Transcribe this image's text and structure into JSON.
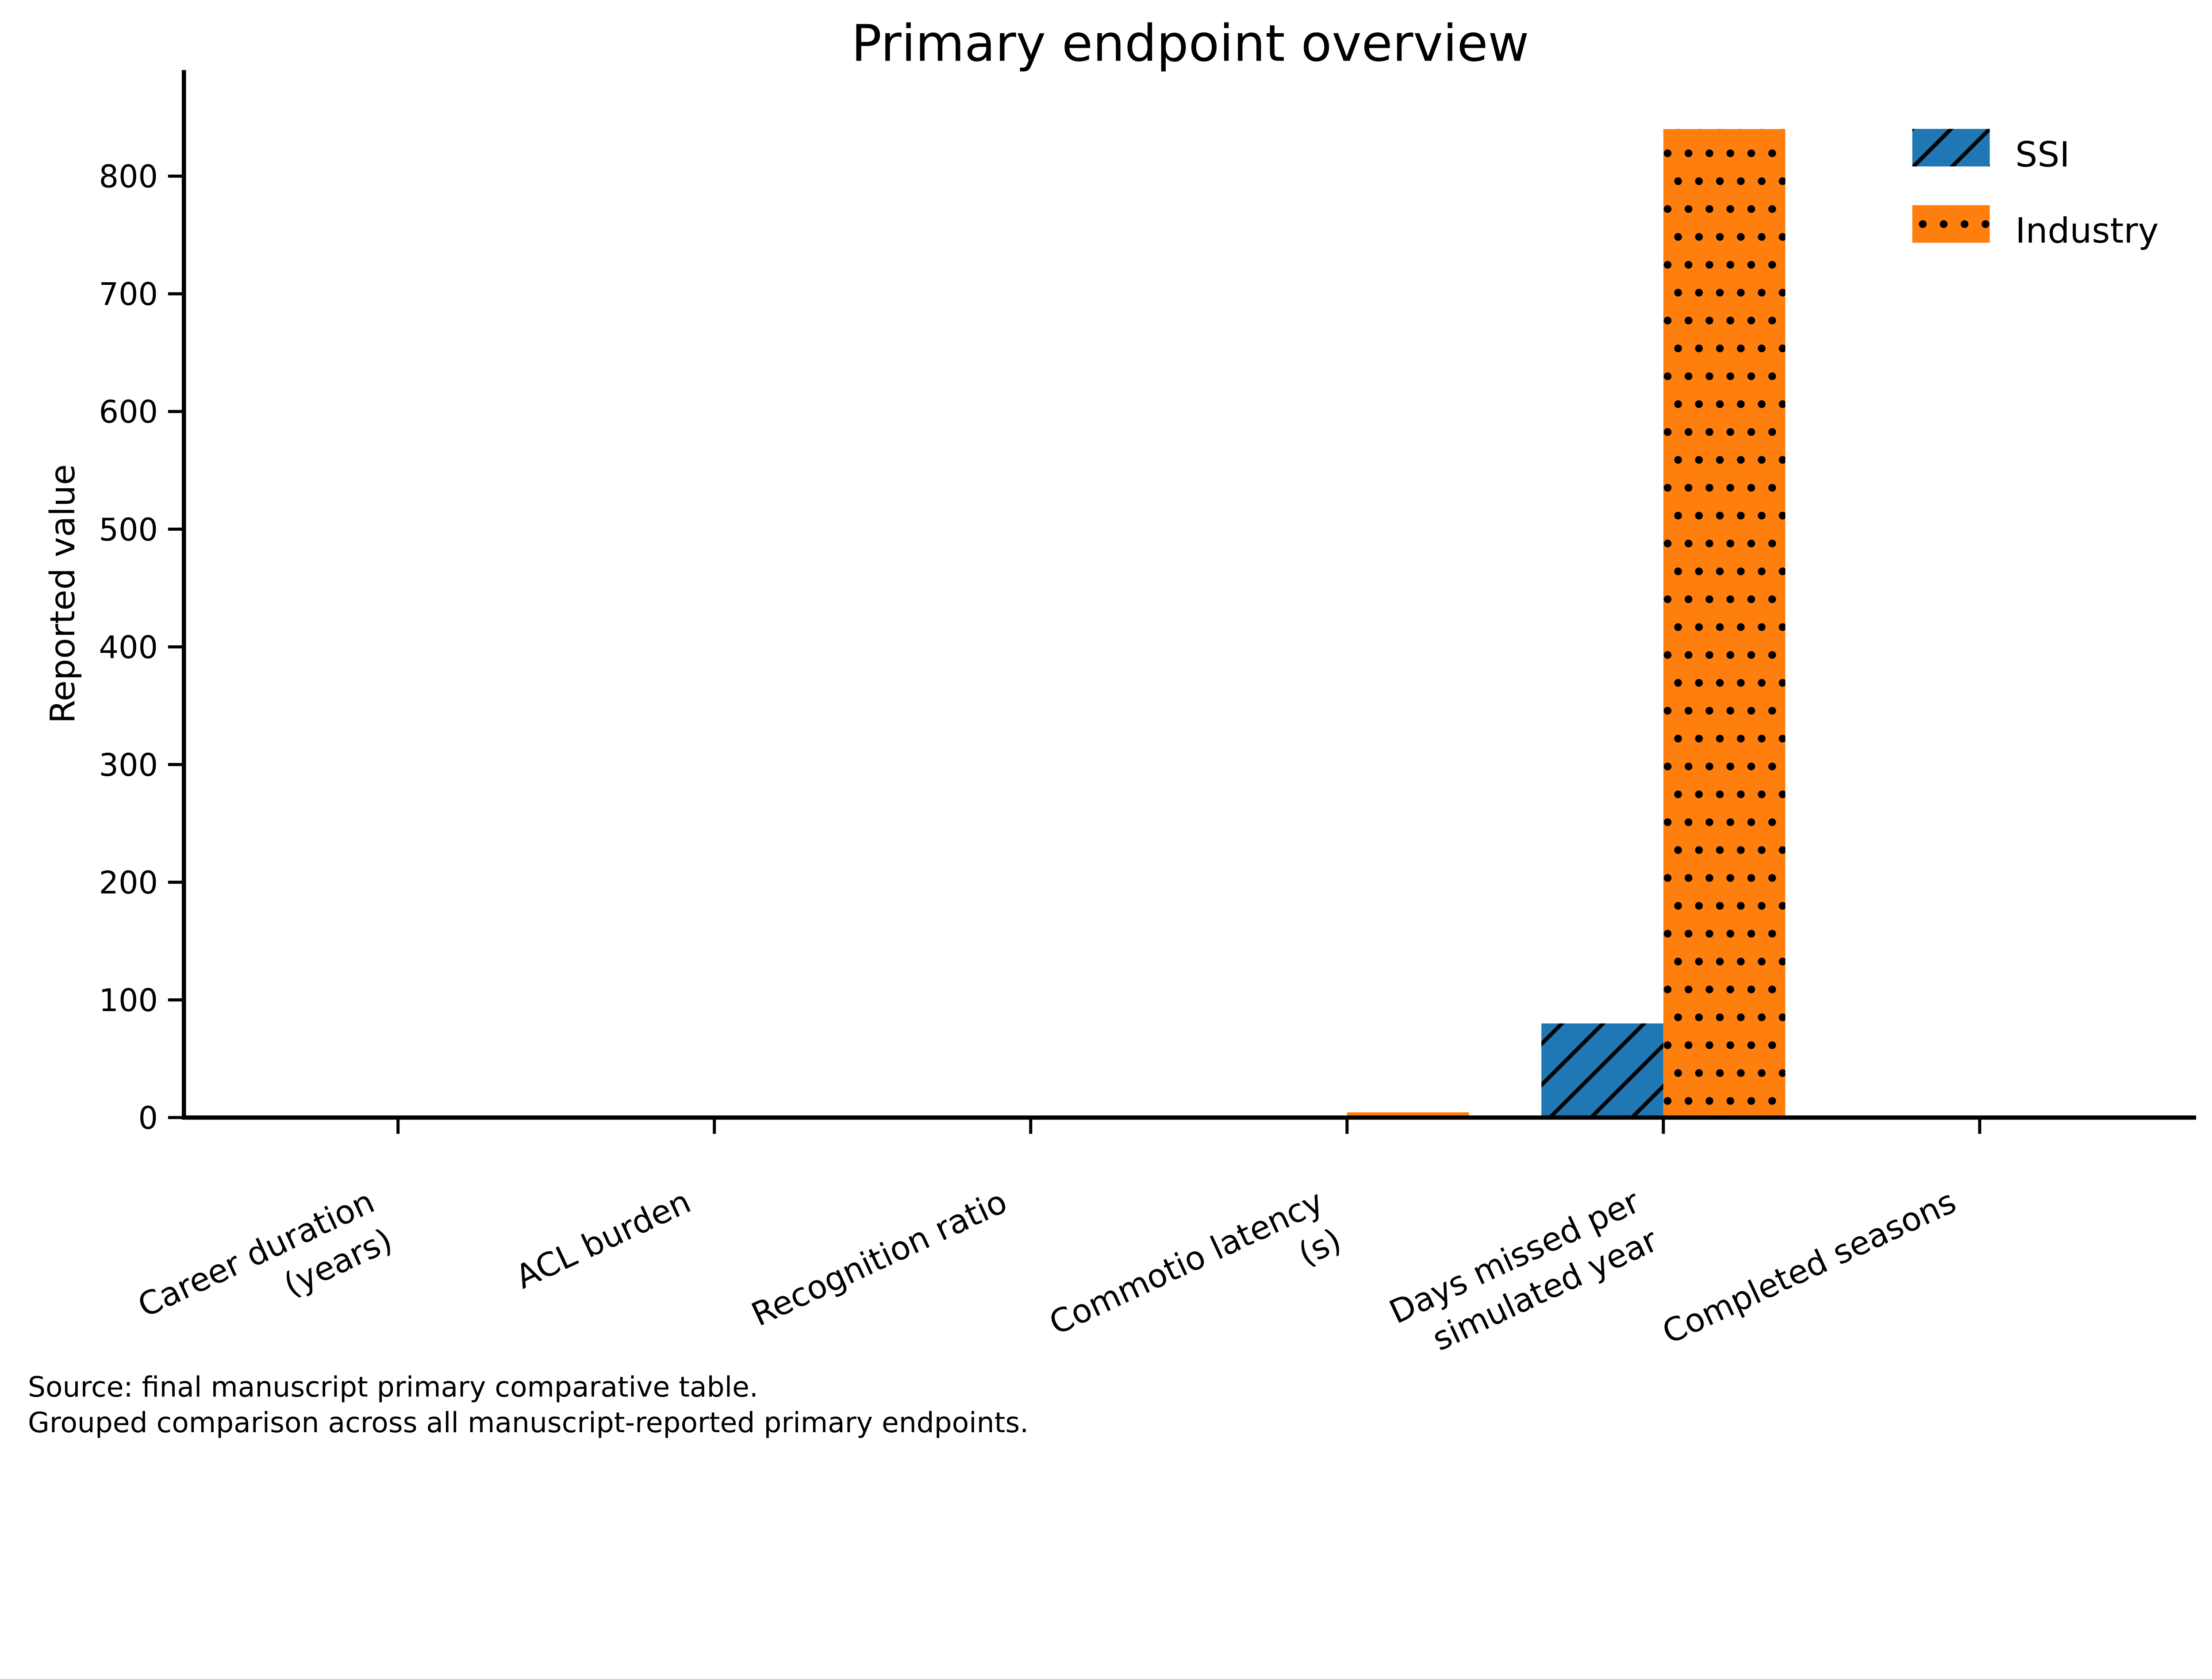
{
  "figure": {
    "background": "#ffffff",
    "text_color": "#000000"
  },
  "chart_data": {
    "type": "bar",
    "title": "Primary endpoint overview",
    "ylabel": "Reported value",
    "xlabel": "",
    "categories": [
      "Career duration\n(years)",
      "ACL burden",
      "Recognition ratio",
      "Commotio latency\n(s)",
      "Days missed per\nsimulated year",
      "Completed seasons"
    ],
    "series": [
      {
        "name": "SSI",
        "color": "#1f77b4",
        "pattern": "diagonal-hatch",
        "values": [
          0,
          0,
          0,
          0,
          80,
          0
        ]
      },
      {
        "name": "Industry",
        "color": "#ff7f0e",
        "pattern": "dots",
        "values": [
          0,
          1.6,
          0,
          4.5,
          840,
          0
        ]
      }
    ],
    "yticks": [
      0,
      100,
      200,
      300,
      400,
      500,
      600,
      700,
      800
    ],
    "ylim": [
      0,
      890
    ],
    "grid": false,
    "legend_position": "upper right",
    "tick_label_rotation": 25,
    "hatch_color": "#000000"
  },
  "annotations": {
    "source_line1": "Source: final manuscript primary comparative table.",
    "source_line2": "Grouped comparison across all manuscript-reported primary endpoints."
  }
}
